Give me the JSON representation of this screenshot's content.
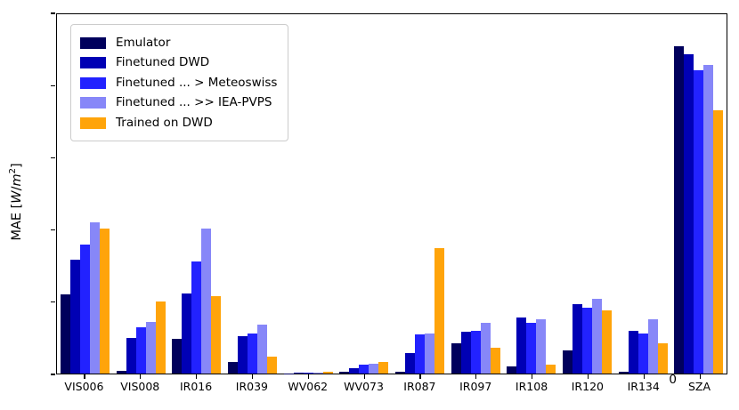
{
  "chart_data": {
    "type": "bar",
    "title": "",
    "xlabel": "",
    "ylabel": "MAE [W/m²]",
    "ylabel_parts": {
      "prefix": "MAE [",
      "unit": "W",
      "slash": "/",
      "unit2": "m",
      "exp": "2",
      "suffix": "]"
    },
    "ylim": [
      0,
      250
    ],
    "yticks": [
      0,
      50,
      100,
      150,
      200,
      250
    ],
    "grid": false,
    "legend_position": "upper left",
    "categories": [
      "VIS006",
      "VIS008",
      "IR016",
      "IR039",
      "WV062",
      "WV073",
      "IR087",
      "IR097",
      "IR108",
      "IR120",
      "IR134",
      "SZA"
    ],
    "series": [
      {
        "name": "Emulator",
        "color": "#00005c",
        "values": [
          55,
          2,
          24,
          8,
          0.3,
          1,
          1.5,
          21,
          5,
          16,
          1,
          228
        ]
      },
      {
        "name": "Finetuned DWD",
        "color": "#0000b4",
        "values": [
          79,
          25,
          56,
          26,
          0.5,
          4,
          14,
          29,
          39,
          48,
          30,
          222
        ]
      },
      {
        "name": "Finetuned ... > Meteoswiss",
        "color": "#2222ff",
        "values": [
          90,
          32,
          78,
          28,
          0.6,
          6,
          27,
          30,
          35,
          46,
          28,
          211
        ]
      },
      {
        "name": "Finetuned ... >> IEA-PVPS",
        "color": "#8787f8",
        "values": [
          105,
          36,
          101,
          34,
          0.8,
          7,
          28,
          35,
          38,
          52,
          38,
          215
        ]
      },
      {
        "name": "Trained on DWD",
        "color": "#ffa40a",
        "values": [
          101,
          50,
          54,
          12,
          1.5,
          8,
          87,
          18,
          6,
          44,
          21,
          183
        ]
      }
    ]
  }
}
